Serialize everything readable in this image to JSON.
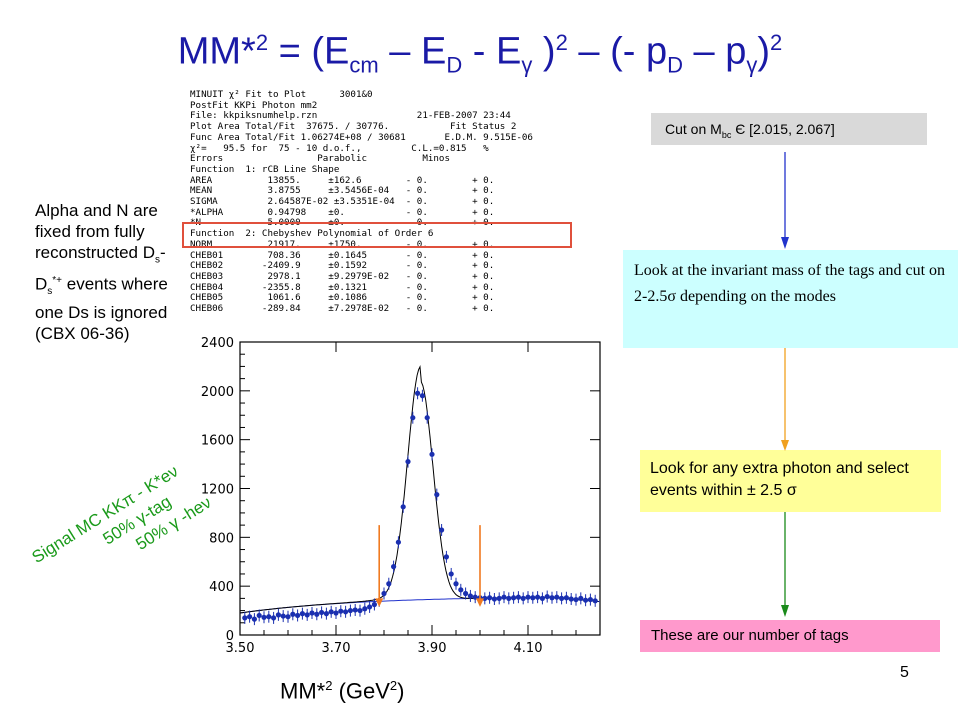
{
  "title": {
    "a": "MM*",
    "sup1": "2",
    "b": " = (E",
    "sub1": "cm",
    "c": " – E",
    "sub2": "D",
    "d": " - E",
    "sub3": "γ",
    "e": " )",
    "sup2": "2",
    "f": " – (- p",
    "sub4": "D",
    "g": " – p",
    "sub5": "γ",
    "h": ")",
    "sup3": "2"
  },
  "minuit": {
    "lines": [
      "MINUIT χ² Fit to Plot      3001&0",
      "PostFit KKPi Photon mm2",
      "File: kkpiksnumhelp.rzn                  21-FEB-2007 23:44",
      "Plot Area Total/Fit  37675. / 30776.           Fit Status 2",
      "Func Area Total/Fit 1.06274E+08 / 30681       E.D.M. 9.515E-06",
      "χ²=   95.5 for  75 - 10 d.o.f.,         C.L.=0.815   %",
      "Errors                 Parabolic          Minos",
      "Function  1: rCB Line Shape",
      "AREA          13855.     ±162.6        - 0.        + 0.",
      "MEAN          3.8755     ±3.5456E-04   - 0.        + 0.",
      "SIGMA         2.64587E-02 ±3.5351E-04  - 0.        + 0.",
      "*ALPHA        0.94798    ±0.           - 0.        + 0.",
      "*N            5.0000     ±0.           - 0.        + 0.",
      "Function  2: Chebyshev Polynomial of Order 6",
      "NORM          21917.     ±1750.        - 0.        + 0.",
      "CHEB01        708.36     ±0.1645       - 0.        + 0.",
      "CHEB02       -2409.9     ±0.1592       - 0.        + 0.",
      "CHEB03        2978.1     ±9.2979E-02   - 0.        + 0.",
      "CHEB04       -2355.8     ±0.1321       - 0.        + 0.",
      "CHEB05        1061.6     ±0.1086       - 0.        + 0.",
      "CHEB06       -289.84     ±7.2978E-02   - 0.        + 0."
    ]
  },
  "note": {
    "l1": "Alpha and N are fixed from fully reconstructed D",
    "s1": "s",
    "m1": "-",
    "m2": "D",
    "s2": "s",
    "sup": "*+",
    "l2": " events where one Ds is ignored (CBX 06-36)"
  },
  "signal": {
    "l1": "Signal MC KKπ - K*eν",
    "l2": "50%  γ-tag",
    "l3": "50% γ -heν"
  },
  "xlabel": {
    "a": "MM*",
    "sup": "2",
    "b": " (GeV",
    "sup2": "2",
    "c": ")"
  },
  "flow": {
    "box1": {
      "a": "Cut on M",
      "sub": "bc",
      "b": " Є [2.015, 2.067]"
    },
    "box2": "Look at the invariant mass of the tags and cut on 2-2.5σ depending on the modes",
    "box3": "Look for any extra photon and select events within ± 2.5 σ",
    "box4": "These are our number of tags",
    "arrow_colors": [
      "#2233cc",
      "#f0a020",
      "#1a8a1a"
    ]
  },
  "page_number": "5",
  "chart_data": {
    "type": "scatter",
    "xlim": [
      3.5,
      4.25
    ],
    "ylim": [
      0,
      2400
    ],
    "x_ticks": [
      "3.50",
      "3.70",
      "3.90",
      "4.10"
    ],
    "y_ticks": [
      "0",
      "400",
      "800",
      "1200",
      "1600",
      "2000",
      "2400"
    ],
    "cut_markers_x": [
      3.79,
      4.0
    ],
    "points": [
      [
        3.51,
        140
      ],
      [
        3.52,
        150
      ],
      [
        3.53,
        130
      ],
      [
        3.54,
        160
      ],
      [
        3.55,
        145
      ],
      [
        3.56,
        150
      ],
      [
        3.57,
        140
      ],
      [
        3.58,
        165
      ],
      [
        3.59,
        155
      ],
      [
        3.6,
        150
      ],
      [
        3.61,
        170
      ],
      [
        3.62,
        160
      ],
      [
        3.63,
        175
      ],
      [
        3.64,
        165
      ],
      [
        3.65,
        180
      ],
      [
        3.66,
        170
      ],
      [
        3.67,
        185
      ],
      [
        3.68,
        175
      ],
      [
        3.69,
        190
      ],
      [
        3.7,
        180
      ],
      [
        3.71,
        195
      ],
      [
        3.72,
        190
      ],
      [
        3.73,
        200
      ],
      [
        3.74,
        205
      ],
      [
        3.75,
        200
      ],
      [
        3.76,
        215
      ],
      [
        3.77,
        230
      ],
      [
        3.78,
        250
      ],
      [
        3.79,
        280
      ],
      [
        3.8,
        340
      ],
      [
        3.81,
        420
      ],
      [
        3.82,
        560
      ],
      [
        3.83,
        760
      ],
      [
        3.84,
        1050
      ],
      [
        3.85,
        1420
      ],
      [
        3.86,
        1780
      ],
      [
        3.87,
        1980
      ],
      [
        3.88,
        1960
      ],
      [
        3.89,
        1780
      ],
      [
        3.9,
        1480
      ],
      [
        3.91,
        1150
      ],
      [
        3.92,
        860
      ],
      [
        3.93,
        640
      ],
      [
        3.94,
        500
      ],
      [
        3.95,
        420
      ],
      [
        3.96,
        370
      ],
      [
        3.97,
        340
      ],
      [
        3.98,
        320
      ],
      [
        3.99,
        310
      ],
      [
        4.0,
        305
      ],
      [
        4.01,
        300
      ],
      [
        4.02,
        305
      ],
      [
        4.03,
        295
      ],
      [
        4.04,
        300
      ],
      [
        4.05,
        310
      ],
      [
        4.06,
        300
      ],
      [
        4.07,
        305
      ],
      [
        4.08,
        310
      ],
      [
        4.09,
        300
      ],
      [
        4.1,
        310
      ],
      [
        4.11,
        305
      ],
      [
        4.12,
        310
      ],
      [
        4.13,
        300
      ],
      [
        4.14,
        315
      ],
      [
        4.15,
        305
      ],
      [
        4.16,
        310
      ],
      [
        4.17,
        300
      ],
      [
        4.18,
        305
      ],
      [
        4.19,
        295
      ],
      [
        4.2,
        290
      ],
      [
        4.21,
        300
      ],
      [
        4.22,
        285
      ],
      [
        4.23,
        290
      ],
      [
        4.24,
        280
      ]
    ],
    "fit_params": {
      "mean": 3.8755,
      "sigma": 0.0265
    }
  }
}
